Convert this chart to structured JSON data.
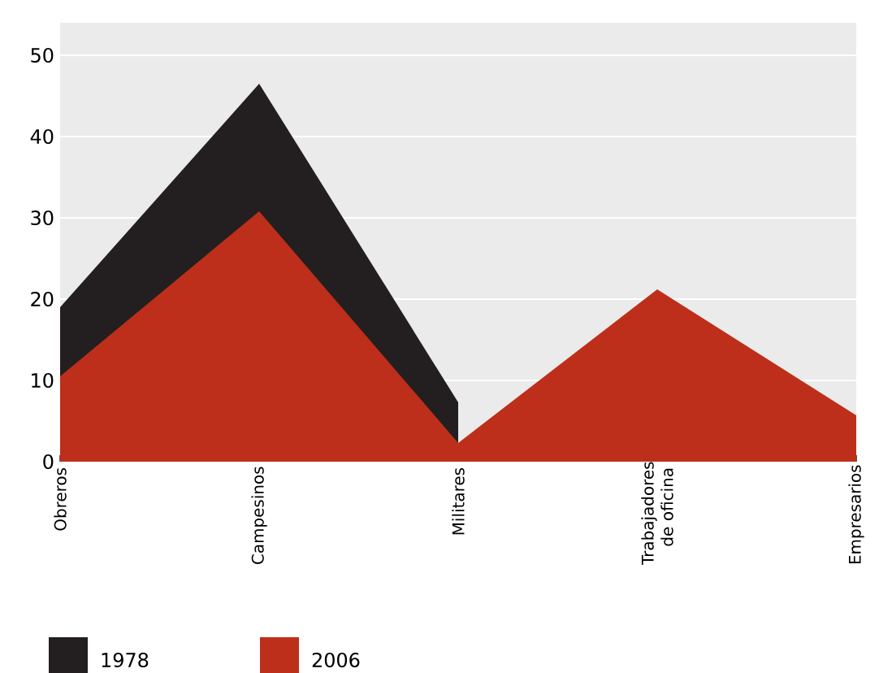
{
  "chart_data": {
    "type": "area",
    "categories": [
      "Obreros",
      "Campesinos",
      "Militares",
      "Trabajadores de oficina",
      "Empresarios"
    ],
    "series": [
      {
        "name": "1978",
        "color": "#231f20",
        "values": [
          19.0,
          46.5,
          7.3,
          null,
          null
        ]
      },
      {
        "name": "2006",
        "color": "#bd2f1a",
        "values": [
          10.5,
          30.8,
          2.3,
          21.2,
          5.7
        ]
      }
    ],
    "ylim": [
      0,
      54
    ],
    "yticks": [
      0,
      10,
      20,
      30,
      40,
      50
    ],
    "grid": "y",
    "legend": "bottom left"
  }
}
